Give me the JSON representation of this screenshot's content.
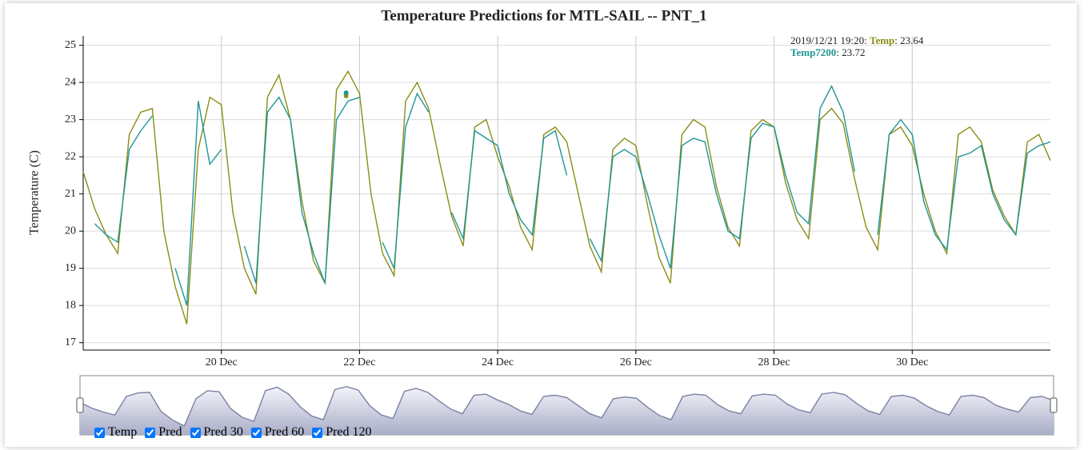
{
  "chart_data": {
    "type": "line",
    "title": "Temperature Predictions for MTL-SAIL -- PNT_1",
    "y_label": "Temperature (C)",
    "x": [
      "2019-12-18T00:00",
      "2019-12-18T04:00",
      "2019-12-18T08:00",
      "2019-12-18T12:00",
      "2019-12-18T16:00",
      "2019-12-18T20:00",
      "2019-12-19T00:00",
      "2019-12-19T04:00",
      "2019-12-19T08:00",
      "2019-12-19T12:00",
      "2019-12-19T16:00",
      "2019-12-19T20:00",
      "2019-12-20T00:00",
      "2019-12-20T04:00",
      "2019-12-20T08:00",
      "2019-12-20T12:00",
      "2019-12-20T16:00",
      "2019-12-20T20:00",
      "2019-12-21T00:00",
      "2019-12-21T04:00",
      "2019-12-21T08:00",
      "2019-12-21T12:00",
      "2019-12-21T16:00",
      "2019-12-21T20:00",
      "2019-12-22T00:00",
      "2019-12-22T04:00",
      "2019-12-22T08:00",
      "2019-12-22T12:00",
      "2019-12-22T16:00",
      "2019-12-22T20:00",
      "2019-12-23T00:00",
      "2019-12-23T04:00",
      "2019-12-23T08:00",
      "2019-12-23T12:00",
      "2019-12-23T16:00",
      "2019-12-23T20:00",
      "2019-12-24T00:00",
      "2019-12-24T04:00",
      "2019-12-24T08:00",
      "2019-12-24T12:00",
      "2019-12-24T16:00",
      "2019-12-24T20:00",
      "2019-12-25T00:00",
      "2019-12-25T04:00",
      "2019-12-25T08:00",
      "2019-12-25T12:00",
      "2019-12-25T16:00",
      "2019-12-25T20:00",
      "2019-12-26T00:00",
      "2019-12-26T04:00",
      "2019-12-26T08:00",
      "2019-12-26T12:00",
      "2019-12-26T16:00",
      "2019-12-26T20:00",
      "2019-12-27T00:00",
      "2019-12-27T04:00",
      "2019-12-27T08:00",
      "2019-12-27T12:00",
      "2019-12-27T16:00",
      "2019-12-27T20:00",
      "2019-12-28T00:00",
      "2019-12-28T04:00",
      "2019-12-28T08:00",
      "2019-12-28T12:00",
      "2019-12-28T16:00",
      "2019-12-28T20:00",
      "2019-12-29T00:00",
      "2019-12-29T04:00",
      "2019-12-29T08:00",
      "2019-12-29T12:00",
      "2019-12-29T16:00",
      "2019-12-29T20:00",
      "2019-12-30T00:00",
      "2019-12-30T04:00",
      "2019-12-30T08:00",
      "2019-12-30T12:00",
      "2019-12-30T16:00",
      "2019-12-30T20:00",
      "2019-12-31T00:00",
      "2019-12-31T04:00",
      "2019-12-31T08:00",
      "2019-12-31T12:00",
      "2019-12-31T16:00",
      "2019-12-31T20:00",
      "2020-01-01T00:00"
    ],
    "series": [
      {
        "name": "Temp",
        "color": "#8c8c16",
        "values": [
          21.6,
          20.6,
          19.9,
          19.4,
          22.6,
          23.2,
          23.3,
          20.0,
          18.5,
          17.5,
          22.2,
          23.6,
          23.4,
          20.5,
          19.0,
          18.3,
          23.6,
          24.2,
          23.0,
          20.8,
          19.2,
          18.6,
          23.8,
          24.3,
          23.7,
          21.0,
          19.4,
          18.8,
          23.5,
          24.0,
          23.3,
          21.8,
          20.4,
          19.6,
          22.8,
          23.0,
          22.0,
          21.2,
          20.1,
          19.5,
          22.6,
          22.8,
          22.4,
          21.0,
          19.6,
          18.9,
          22.2,
          22.5,
          22.3,
          20.7,
          19.3,
          18.6,
          22.6,
          23.0,
          22.8,
          21.2,
          20.1,
          19.6,
          22.7,
          23.0,
          22.8,
          21.3,
          20.3,
          19.8,
          23.0,
          23.3,
          22.9,
          21.4,
          20.1,
          19.5,
          22.6,
          22.8,
          22.3,
          21.0,
          20.0,
          19.4,
          22.6,
          22.8,
          22.4,
          21.1,
          20.4,
          19.9,
          22.4,
          22.6,
          21.9
        ]
      },
      {
        "name": "Temp7200",
        "color": "#1f9696",
        "values": [
          null,
          20.2,
          19.9,
          19.7,
          22.2,
          22.7,
          23.1,
          null,
          19.0,
          18.0,
          23.5,
          21.8,
          22.2,
          null,
          19.6,
          18.6,
          23.2,
          23.6,
          23.0,
          20.5,
          19.4,
          18.6,
          23.0,
          23.5,
          23.6,
          null,
          19.7,
          19.0,
          22.8,
          23.7,
          23.2,
          null,
          20.5,
          19.8,
          22.7,
          22.5,
          22.3,
          21.0,
          20.3,
          19.9,
          22.5,
          22.7,
          21.5,
          null,
          19.8,
          19.2,
          22.0,
          22.2,
          22.0,
          21.0,
          19.9,
          19.0,
          22.3,
          22.5,
          22.4,
          21.0,
          20.0,
          19.8,
          22.5,
          22.9,
          22.8,
          21.5,
          20.5,
          20.2,
          23.3,
          23.9,
          23.2,
          21.6,
          null,
          19.9,
          22.6,
          23.0,
          22.6,
          20.8,
          19.9,
          19.5,
          22.0,
          22.1,
          22.3,
          21.0,
          20.3,
          19.9,
          22.1,
          22.3,
          22.4
        ]
      }
    ],
    "xlim": [
      "2019-12-18T00:00",
      "2020-01-01T00:00"
    ],
    "xticks": [
      {
        "value": "2019-12-20T00:00",
        "label": "20 Dec"
      },
      {
        "value": "2019-12-22T00:00",
        "label": "22 Dec"
      },
      {
        "value": "2019-12-24T00:00",
        "label": "24 Dec"
      },
      {
        "value": "2019-12-26T00:00",
        "label": "26 Dec"
      },
      {
        "value": "2019-12-28T00:00",
        "label": "28 Dec"
      },
      {
        "value": "2019-12-30T00:00",
        "label": "30 Dec"
      }
    ],
    "ylim": [
      16.8,
      25.25
    ],
    "yticks": [
      17,
      18,
      19,
      20,
      21,
      22,
      23,
      24,
      25
    ],
    "grid": true,
    "legend": "top-right",
    "hover": {
      "time": "2019/12/21 19:20",
      "values": [
        23.64,
        23.72
      ]
    },
    "toggles": [
      {
        "label": "Temp",
        "checked": true
      },
      {
        "label": "Pred",
        "checked": true
      },
      {
        "label": "Pred 30",
        "checked": true
      },
      {
        "label": "Pred 60",
        "checked": true
      },
      {
        "label": "Pred 120",
        "checked": true
      }
    ]
  }
}
